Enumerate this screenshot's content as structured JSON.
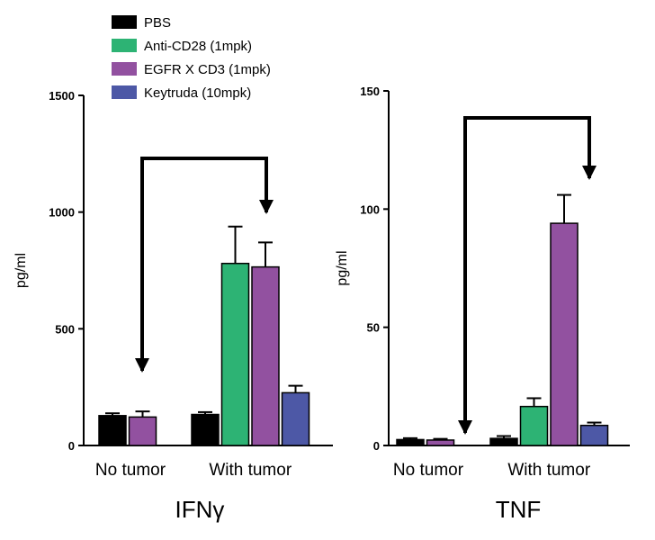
{
  "chart_data": [
    {
      "type": "bar",
      "title": "IFNγ",
      "ylabel": "pg/ml",
      "xlabel": "",
      "ylim": [
        0,
        1500
      ],
      "yticks": [
        0,
        500,
        1000,
        1500
      ],
      "grid": false,
      "legend": "top-left",
      "categories": [
        "No tumor",
        "With tumor"
      ],
      "series": [
        {
          "name": "PBS",
          "color": "#000000",
          "values": [
            128,
            133
          ],
          "errors": [
            10,
            10
          ]
        },
        {
          "name": "Anti-CD28 (1mpk)",
          "color": "#2db374",
          "values": [
            null,
            780
          ],
          "errors": [
            null,
            158
          ]
        },
        {
          "name": "EGFR X CD3 (1mpk)",
          "color": "#9251a0",
          "values": [
            122,
            765
          ],
          "errors": [
            24,
            105
          ]
        },
        {
          "name": "Keytruda (10mpk)",
          "color": "#4d58a6",
          "values": [
            null,
            226
          ],
          "errors": [
            null,
            30
          ]
        }
      ],
      "annotation": "arrow from No tumor to With tumor"
    },
    {
      "type": "bar",
      "title": "TNF",
      "ylabel": "pg/ml",
      "xlabel": "",
      "ylim": [
        0,
        150
      ],
      "yticks": [
        0,
        50,
        100,
        150
      ],
      "grid": false,
      "categories": [
        "No tumor",
        "With tumor"
      ],
      "series": [
        {
          "name": "PBS",
          "color": "#000000",
          "values": [
            2.5,
            3
          ],
          "errors": [
            0.6,
            1
          ]
        },
        {
          "name": "Anti-CD28 (1mpk)",
          "color": "#2db374",
          "values": [
            null,
            16.5
          ],
          "errors": [
            null,
            3.5
          ]
        },
        {
          "name": "EGFR X CD3 (1mpk)",
          "color": "#9251a0",
          "values": [
            2.3,
            94
          ],
          "errors": [
            0.5,
            12
          ]
        },
        {
          "name": "Keytruda (10mpk)",
          "color": "#4d58a6",
          "values": [
            null,
            8.5
          ],
          "errors": [
            null,
            1.2
          ]
        }
      ],
      "annotation": "arrow from With tumor to No tumor"
    }
  ]
}
